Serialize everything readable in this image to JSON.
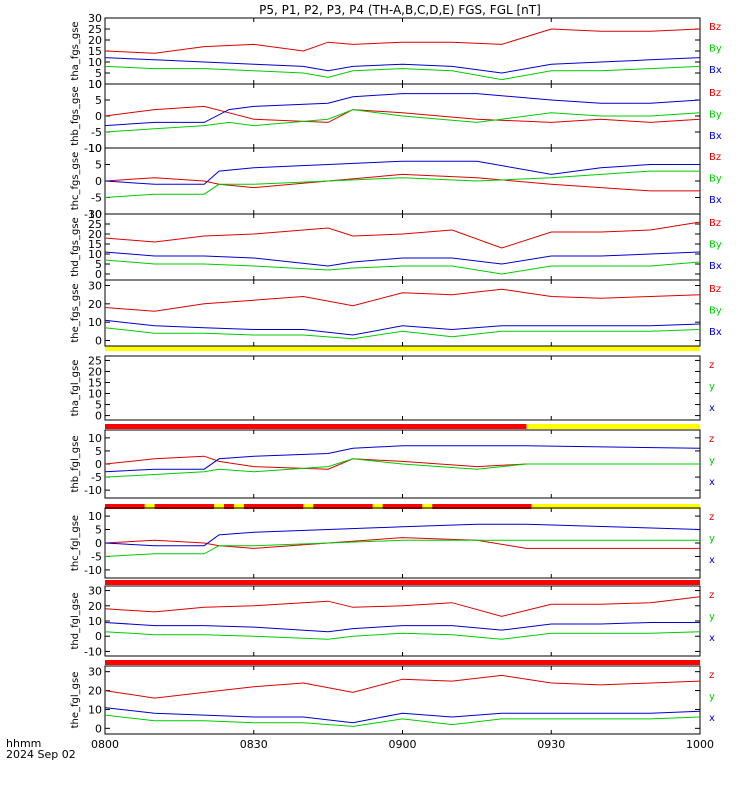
{
  "title": "P5, P1, P2, P3, P4 (TH-A,B,C,D,E) FGS, FGL [nT]",
  "x_axis": {
    "label_line1": "hhmm",
    "label_line2": "2024 Sep 02",
    "tick_labels": [
      "0800",
      "0830",
      "0900",
      "0930",
      "1000"
    ]
  },
  "colors": {
    "x": "#0000cc",
    "y": "#00cc00",
    "z": "#dd0000",
    "yellow": "#ffff00",
    "red": "#ff0000"
  },
  "chart_data": {
    "type": "line",
    "x_unit": "hhmm",
    "xlim": [
      "0800",
      "1000"
    ],
    "panels": [
      {
        "ylabel": "tha_fgs_gse",
        "ylim": [
          0,
          30
        ],
        "yticks": [
          "0",
          "5",
          "10",
          "15",
          "20",
          "25",
          "30"
        ],
        "legend": [
          "Bz",
          "By",
          "Bx"
        ],
        "x": [
          "0800",
          "0810",
          "0820",
          "0830",
          "0840",
          "0845",
          "0850",
          "0900",
          "0910",
          "0920",
          "0930",
          "0940",
          "0950",
          "1000"
        ],
        "series": [
          {
            "name": "Bz",
            "color": "red",
            "values": [
              15,
              14,
              17,
              18,
              15,
              19,
              18,
              19,
              19,
              18,
              25,
              24,
              24,
              25
            ]
          },
          {
            "name": "By",
            "color": "green",
            "values": [
              8,
              7,
              7,
              6,
              5,
              3,
              6,
              7,
              6,
              2,
              6,
              6,
              7,
              8
            ]
          },
          {
            "name": "Bx",
            "color": "blue",
            "values": [
              12,
              11,
              10,
              9,
              8,
              6,
              8,
              9,
              8,
              5,
              9,
              10,
              11,
              12
            ]
          }
        ]
      },
      {
        "ylabel": "thb_fgs_gse",
        "ylim": [
          -10,
          10
        ],
        "yticks": [
          "-10",
          "-5",
          "0",
          "5",
          "10"
        ],
        "legend": [
          "Bz",
          "By",
          "Bx"
        ],
        "x": [
          "0800",
          "0810",
          "0820",
          "0825",
          "0830",
          "0845",
          "0850",
          "0900",
          "0915",
          "0930",
          "0940",
          "0950",
          "1000"
        ],
        "series": [
          {
            "name": "Bz",
            "color": "red",
            "values": [
              0,
              2,
              3,
              1,
              -1,
              -2,
              2,
              1,
              -1,
              -2,
              -1,
              -2,
              -1
            ]
          },
          {
            "name": "By",
            "color": "green",
            "values": [
              -5,
              -4,
              -3,
              -2,
              -3,
              -1,
              2,
              0,
              -2,
              1,
              0,
              0,
              1
            ]
          },
          {
            "name": "Bx",
            "color": "blue",
            "values": [
              -3,
              -2,
              -2,
              2,
              3,
              4,
              6,
              7,
              7,
              5,
              4,
              4,
              5
            ]
          }
        ]
      },
      {
        "ylabel": "thc_fgs_gse",
        "ylim": [
          -10,
          10
        ],
        "yticks": [
          "-10",
          "-5",
          "0",
          "5",
          "10"
        ],
        "legend": [
          "Bz",
          "By",
          "Bx"
        ],
        "x": [
          "0800",
          "0810",
          "0820",
          "0823",
          "0830",
          "0845",
          "0900",
          "0915",
          "0930",
          "0940",
          "0950",
          "1000"
        ],
        "series": [
          {
            "name": "Bz",
            "color": "red",
            "values": [
              0,
              1,
              0,
              -1,
              -2,
              0,
              2,
              1,
              -1,
              -2,
              -3,
              -3
            ]
          },
          {
            "name": "By",
            "color": "green",
            "values": [
              -5,
              -4,
              -4,
              -1,
              -1,
              0,
              1,
              0,
              1,
              2,
              3,
              3
            ]
          },
          {
            "name": "Bx",
            "color": "blue",
            "values": [
              0,
              -1,
              -1,
              3,
              4,
              5,
              6,
              6,
              2,
              4,
              5,
              5
            ]
          }
        ]
      },
      {
        "ylabel": "thd_fgs_gse",
        "ylim": [
          -3,
          30
        ],
        "yticks": [
          "0",
          "5",
          "10",
          "15",
          "20",
          "25",
          "30"
        ],
        "legend": [
          "Bz",
          "By",
          "Bx"
        ],
        "x": [
          "0800",
          "0810",
          "0820",
          "0830",
          "0845",
          "0850",
          "0900",
          "0910",
          "0920",
          "0930",
          "0940",
          "0950",
          "1000"
        ],
        "series": [
          {
            "name": "Bz",
            "color": "red",
            "values": [
              18,
              16,
              19,
              20,
              23,
              19,
              20,
              22,
              13,
              21,
              21,
              22,
              26
            ]
          },
          {
            "name": "By",
            "color": "green",
            "values": [
              7,
              5,
              5,
              4,
              2,
              3,
              4,
              4,
              0,
              4,
              4,
              4,
              6
            ]
          },
          {
            "name": "Bx",
            "color": "blue",
            "values": [
              11,
              9,
              9,
              8,
              4,
              6,
              8,
              8,
              5,
              9,
              9,
              10,
              11
            ]
          }
        ]
      },
      {
        "ylabel": "the_fgs_gse",
        "ylim": [
          -3,
          33
        ],
        "yticks": [
          "0",
          "10",
          "20",
          "30"
        ],
        "legend": [
          "Bz",
          "By",
          "Bx"
        ],
        "x": [
          "0800",
          "0810",
          "0820",
          "0830",
          "0840",
          "0850",
          "0900",
          "0910",
          "0920",
          "0930",
          "0940",
          "0950",
          "1000"
        ],
        "series": [
          {
            "name": "Bz",
            "color": "red",
            "values": [
              18,
              16,
              20,
              22,
              24,
              19,
              26,
              25,
              28,
              24,
              23,
              24,
              25
            ]
          },
          {
            "name": "By",
            "color": "green",
            "values": [
              7,
              4,
              4,
              3,
              3,
              1,
              5,
              2,
              5,
              5,
              5,
              5,
              6
            ]
          },
          {
            "name": "Bx",
            "color": "blue",
            "values": [
              11,
              8,
              7,
              6,
              6,
              3,
              8,
              6,
              8,
              8,
              8,
              8,
              9
            ]
          }
        ]
      },
      {
        "ylabel": "tha_fgl_gse",
        "ylim": [
          -2,
          27
        ],
        "yticks": [
          "0",
          "5",
          "10",
          "15",
          "20",
          "25"
        ],
        "legend": [
          "z",
          "y",
          "x"
        ],
        "x": [],
        "series": []
      },
      {
        "ylabel": "thb_fgl_gse",
        "ylim": [
          -13,
          13
        ],
        "yticks": [
          "-10",
          "-5",
          "0",
          "5",
          "10"
        ],
        "legend": [
          "z",
          "y",
          "x"
        ],
        "x": [
          "0800",
          "0810",
          "0820",
          "0823",
          "0830",
          "0845",
          "0850",
          "0900",
          "0915",
          "0925",
          "1000"
        ],
        "series": [
          {
            "name": "z",
            "color": "red",
            "values": [
              0,
              2,
              3,
              1,
              -1,
              -2,
              2,
              1,
              -1,
              0,
              0
            ]
          },
          {
            "name": "y",
            "color": "green",
            "values": [
              -5,
              -4,
              -3,
              -2,
              -3,
              -1,
              2,
              0,
              -2,
              0,
              0
            ]
          },
          {
            "name": "x",
            "color": "blue",
            "values": [
              -3,
              -2,
              -2,
              2,
              3,
              4,
              6,
              7,
              7,
              7,
              6
            ]
          }
        ]
      },
      {
        "ylabel": "thc_fgl_gse",
        "ylim": [
          -13,
          13
        ],
        "yticks": [
          "-10",
          "-5",
          "0",
          "5",
          "10"
        ],
        "legend": [
          "z",
          "y",
          "x"
        ],
        "x": [
          "0800",
          "0810",
          "0820",
          "0823",
          "0830",
          "0845",
          "0900",
          "0915",
          "0925",
          "1000"
        ],
        "series": [
          {
            "name": "z",
            "color": "red",
            "values": [
              0,
              1,
              0,
              -1,
              -2,
              0,
              2,
              1,
              -2,
              -2
            ]
          },
          {
            "name": "y",
            "color": "green",
            "values": [
              -5,
              -4,
              -4,
              -1,
              -1,
              0,
              1,
              1,
              1,
              1
            ]
          },
          {
            "name": "x",
            "color": "blue",
            "values": [
              0,
              -1,
              -1,
              3,
              4,
              5,
              6,
              7,
              7,
              5
            ]
          }
        ]
      },
      {
        "ylabel": "thd_fgl_gse",
        "ylim": [
          -13,
          33
        ],
        "yticks": [
          "-10",
          "0",
          "10",
          "20",
          "30"
        ],
        "legend": [
          "z",
          "y",
          "x"
        ],
        "x": [
          "0800",
          "0810",
          "0820",
          "0830",
          "0845",
          "0850",
          "0900",
          "0910",
          "0920",
          "0930",
          "0940",
          "0950",
          "1000"
        ],
        "series": [
          {
            "name": "z",
            "color": "red",
            "values": [
              18,
              16,
              19,
              20,
              23,
              19,
              20,
              22,
              13,
              21,
              21,
              22,
              26
            ]
          },
          {
            "name": "y",
            "color": "green",
            "values": [
              3,
              1,
              1,
              0,
              -2,
              0,
              2,
              1,
              -2,
              2,
              2,
              2,
              3
            ]
          },
          {
            "name": "x",
            "color": "blue",
            "values": [
              9,
              7,
              7,
              6,
              3,
              5,
              7,
              7,
              4,
              8,
              8,
              9,
              9
            ]
          }
        ]
      },
      {
        "ylabel": "the_fgl_gse",
        "ylim": [
          -3,
          33
        ],
        "yticks": [
          "0",
          "10",
          "20",
          "30"
        ],
        "legend": [
          "z",
          "y",
          "x"
        ],
        "x": [
          "0800",
          "0810",
          "0820",
          "0830",
          "0840",
          "0850",
          "0900",
          "0910",
          "0920",
          "0930",
          "0940",
          "0950",
          "1000"
        ],
        "series": [
          {
            "name": "z",
            "color": "red",
            "values": [
              20,
              16,
              19,
              22,
              24,
              19,
              26,
              25,
              28,
              24,
              23,
              24,
              25
            ]
          },
          {
            "name": "y",
            "color": "green",
            "values": [
              7,
              4,
              4,
              3,
              3,
              1,
              5,
              2,
              5,
              5,
              5,
              5,
              6
            ]
          },
          {
            "name": "x",
            "color": "blue",
            "values": [
              11,
              8,
              7,
              6,
              6,
              3,
              8,
              6,
              8,
              8,
              8,
              8,
              9
            ]
          }
        ]
      }
    ],
    "status_bars": [
      {
        "above_panel": 5,
        "segments": [
          {
            "from": "0800",
            "to": "1000",
            "color": "yellow"
          }
        ]
      },
      {
        "above_panel": 6,
        "segments": [
          {
            "from": "0800",
            "to": "0925",
            "color": "red"
          },
          {
            "from": "0925",
            "to": "1000",
            "color": "yellow"
          }
        ]
      },
      {
        "above_panel": 7,
        "segments": [
          {
            "from": "0800",
            "to": "0808",
            "color": "red"
          },
          {
            "from": "0808",
            "to": "0810",
            "color": "yellow"
          },
          {
            "from": "0810",
            "to": "0822",
            "color": "red"
          },
          {
            "from": "0822",
            "to": "0824",
            "color": "yellow"
          },
          {
            "from": "0824",
            "to": "0826",
            "color": "red"
          },
          {
            "from": "0826",
            "to": "0828",
            "color": "yellow"
          },
          {
            "from": "0828",
            "to": "0840",
            "color": "red"
          },
          {
            "from": "0840",
            "to": "0842",
            "color": "yellow"
          },
          {
            "from": "0842",
            "to": "0854",
            "color": "red"
          },
          {
            "from": "0854",
            "to": "0856",
            "color": "yellow"
          },
          {
            "from": "0856",
            "to": "0904",
            "color": "red"
          },
          {
            "from": "0904",
            "to": "0906",
            "color": "yellow"
          },
          {
            "from": "0906",
            "to": "0926",
            "color": "red"
          },
          {
            "from": "0926",
            "to": "1000",
            "color": "yellow"
          }
        ]
      },
      {
        "above_panel": 8,
        "segments": [
          {
            "from": "0800",
            "to": "1000",
            "color": "red"
          }
        ]
      },
      {
        "above_panel": 9,
        "segments": [
          {
            "from": "0800",
            "to": "1000",
            "color": "red"
          }
        ]
      }
    ]
  }
}
